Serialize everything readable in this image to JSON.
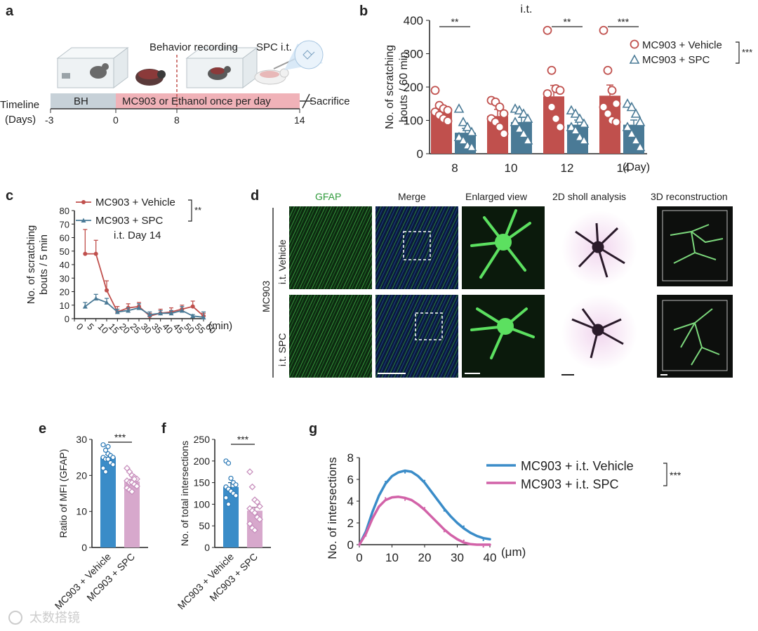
{
  "panels": {
    "a": {
      "label": "a",
      "timeline_label": "Timeline",
      "days_label": "(Days)",
      "ticks": [
        "-3",
        "0",
        "8",
        "14"
      ],
      "bh_label": "BH",
      "treatment_label": "MC903 or Ethanol once per day",
      "behavior_label": "Behavior recording",
      "spc_label": "SPC i.t.",
      "sacrifice_label": "Sacrifice"
    },
    "b": {
      "label": "b"
    },
    "c": {
      "label": "c"
    },
    "d": {
      "label": "d",
      "col_headers": [
        "GFAP",
        "Merge",
        "Enlarged view",
        "2D sholl analysis",
        "3D reconstruction"
      ],
      "row_labels": [
        "i.t. Vehicle",
        "i.t. SPC"
      ],
      "group_label": "MC903"
    },
    "e": {
      "label": "e"
    },
    "f": {
      "label": "f"
    },
    "g": {
      "label": "g"
    }
  },
  "watermark": "太数搭镜",
  "colors": {
    "vehicle_red": "#c0504d",
    "spc_blue": "#4a7a96",
    "vehicle_blue": "#3a8cc8",
    "spc_pink": "#d7a8cc",
    "g_vehicle": "#3a8cc8",
    "g_spc": "#d262a8",
    "gfap_green": "#4ccd50",
    "timeline_gray": "#c7d1d8",
    "timeline_pink": "#f0b2b8"
  },
  "chart_data": [
    {
      "id": "b",
      "type": "bar",
      "title": "i.t.",
      "xlabel": "(Day)",
      "ylabel": "No. of scratching bouts / 60 min",
      "categories": [
        "8",
        "10",
        "12",
        "14"
      ],
      "ylim": [
        0,
        400
      ],
      "yticks": [
        0,
        100,
        200,
        300,
        400
      ],
      "series": [
        {
          "name": "MC903 + Vehicle",
          "values": [
            126,
            113,
            172,
            174
          ],
          "errors": [
            14,
            20,
            33,
            32
          ],
          "points": [
            [
              190,
              145,
              135,
              130,
              125,
              115,
              105,
              98
            ],
            [
              160,
              155,
              140,
              120,
              105,
              95,
              80,
              60
            ],
            [
              370,
              250,
              195,
              190,
              180,
              140,
              105,
              80
            ],
            [
              370,
              250,
              190,
              150,
              140,
              120,
              100,
              95
            ]
          ]
        },
        {
          "name": "MC903 + SPC",
          "values": [
            63,
            95,
            87,
            87
          ],
          "errors": [
            13,
            14,
            14,
            14
          ],
          "points": [
            [
              135,
              95,
              80,
              65,
              50,
              40,
              25,
              20
            ],
            [
              135,
              130,
              120,
              105,
              95,
              75,
              60,
              40
            ],
            [
              130,
              120,
              105,
              90,
              80,
              70,
              50,
              40
            ],
            [
              150,
              140,
              120,
              95,
              80,
              60,
              40,
              20
            ]
          ]
        }
      ],
      "significance": [
        {
          "category": "8",
          "label": "**"
        },
        {
          "category": "12",
          "label": "**"
        },
        {
          "category": "14",
          "label": "***"
        }
      ],
      "legend_sig": "***",
      "legend_position": "top-right"
    },
    {
      "id": "c",
      "type": "line",
      "title": "",
      "annotation": "i.t. Day 14",
      "xlabel": "(min)",
      "ylabel": "No. of scratching bouts / 5 min",
      "x": [
        5,
        10,
        15,
        20,
        25,
        30,
        35,
        40,
        45,
        50,
        55,
        60
      ],
      "xlim": [
        0,
        60
      ],
      "ylim": [
        0,
        80
      ],
      "yticks": [
        0,
        10,
        20,
        30,
        40,
        50,
        60,
        70,
        80
      ],
      "series": [
        {
          "name": "MC903 + Vehicle",
          "values": [
            48,
            48,
            21,
            5,
            8,
            9,
            2,
            4,
            5,
            7,
            9,
            2
          ],
          "errors": [
            18,
            10,
            7,
            4,
            3,
            3,
            2,
            3,
            3,
            3,
            4,
            2
          ]
        },
        {
          "name": "MC903 + SPC",
          "values": [
            9,
            15,
            12,
            5,
            6,
            8,
            3,
            4,
            4,
            6,
            2,
            1
          ],
          "errors": [
            3,
            3,
            3,
            2,
            2,
            3,
            2,
            2,
            2,
            3,
            1,
            4
          ]
        }
      ],
      "legend_sig": "**",
      "legend_position": "top-right"
    },
    {
      "id": "e",
      "type": "bar",
      "xlabel": "",
      "ylabel": "Ratio of MFI (GFAP)",
      "categories": [
        "MC903 + Vehicle",
        "MC903 + SPC"
      ],
      "ylim": [
        0,
        30
      ],
      "yticks": [
        0,
        10,
        20,
        30
      ],
      "values": [
        25,
        18.3
      ],
      "errors": [
        0.8,
        0.6
      ],
      "points": [
        [
          28.5,
          27,
          26,
          25.5,
          25,
          25,
          24.5,
          24.5,
          23.5,
          23,
          22,
          21,
          28
        ],
        [
          22,
          21,
          20,
          19.5,
          19,
          18.5,
          18,
          18,
          17.5,
          17,
          16.5,
          16,
          15.5,
          19
        ]
      ],
      "significance": "***"
    },
    {
      "id": "f",
      "type": "bar",
      "xlabel": "",
      "ylabel": "No. of total intersections",
      "categories": [
        "MC903 + Vehicle",
        "MC903 + SPC"
      ],
      "ylim": [
        0,
        250
      ],
      "yticks": [
        0,
        50,
        100,
        150,
        200,
        250
      ],
      "values": [
        140,
        85
      ],
      "errors": [
        10,
        8
      ],
      "points": [
        [
          200,
          195,
          160,
          150,
          145,
          140,
          135,
          130,
          125,
          120,
          115,
          100
        ],
        [
          175,
          140,
          110,
          105,
          95,
          90,
          85,
          80,
          70,
          65,
          55,
          45,
          40
        ]
      ],
      "significance": "***"
    },
    {
      "id": "g",
      "type": "line",
      "xlabel": "(μm)",
      "ylabel": "No. of intersections",
      "x": [
        0,
        2,
        4,
        6,
        8,
        10,
        12,
        14,
        16,
        18,
        20,
        22,
        24,
        26,
        28,
        30,
        32,
        34,
        36,
        38,
        40
      ],
      "xlim": [
        0,
        40
      ],
      "xticks": [
        0,
        10,
        20,
        30,
        40
      ],
      "ylim": [
        0,
        8
      ],
      "yticks": [
        0,
        2,
        4,
        6,
        8
      ],
      "series": [
        {
          "name": "MC903 + i.t. Vehicle",
          "values": [
            0,
            1.2,
            3.0,
            4.5,
            5.6,
            6.3,
            6.65,
            6.8,
            6.7,
            6.3,
            5.7,
            4.9,
            4.1,
            3.3,
            2.6,
            2.0,
            1.5,
            1.1,
            0.8,
            0.6,
            0.5
          ]
        },
        {
          "name": "MC903 + i.t. SPC",
          "values": [
            0,
            1.0,
            2.4,
            3.5,
            4.1,
            4.35,
            4.4,
            4.3,
            4.1,
            3.7,
            3.2,
            2.6,
            2.0,
            1.4,
            0.9,
            0.5,
            0.2,
            0.05,
            0,
            0,
            0
          ]
        }
      ],
      "legend_sig": "***",
      "legend_position": "top-right"
    }
  ]
}
